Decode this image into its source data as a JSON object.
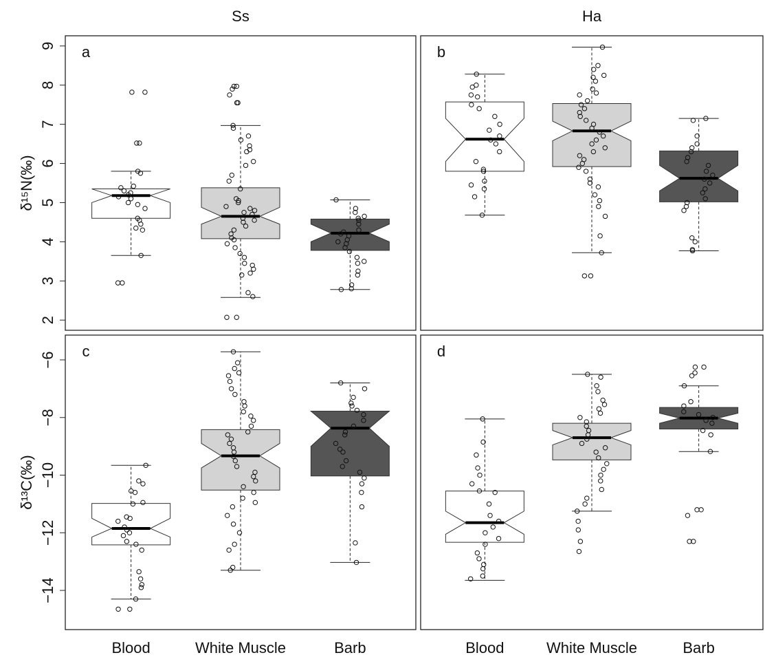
{
  "chart_data": [
    {
      "type": "box",
      "title": "Ss",
      "panel_label": "a",
      "y_label": "δ¹⁵N(‰)",
      "ylim": [
        1.74,
        9.26
      ],
      "yticks": [
        2,
        3,
        4,
        5,
        6,
        7,
        8,
        9
      ],
      "series": [
        {
          "color": "#ffffff",
          "whisker_low": 3.65,
          "q1": 4.6,
          "median": 5.18,
          "q3": 5.35,
          "whisker_high": 5.8,
          "notch": [
            5.0,
            5.35
          ],
          "points": [
            7.82,
            7.82,
            6.52,
            6.52,
            5.8,
            5.75,
            5.42,
            5.38,
            5.3,
            5.25,
            5.2,
            5.15,
            5.1,
            5.0,
            4.95,
            4.85,
            4.6,
            4.45,
            4.35,
            4.3,
            4.55,
            3.65,
            2.95,
            2.95
          ]
        },
        {
          "color": "#d3d3d3",
          "whisker_low": 2.58,
          "q1": 4.08,
          "median": 4.65,
          "q3": 5.38,
          "whisker_high": 6.97,
          "notch": [
            4.45,
            4.88
          ],
          "points": [
            7.97,
            7.97,
            7.9,
            7.75,
            7.55,
            7.55,
            6.97,
            6.9,
            6.7,
            6.6,
            6.45,
            6.35,
            6.3,
            6.05,
            5.95,
            5.7,
            5.55,
            5.35,
            5.1,
            5.05,
            5.0,
            4.9,
            4.85,
            4.8,
            4.75,
            4.7,
            4.6,
            4.55,
            4.5,
            4.4,
            4.3,
            4.2,
            4.1,
            4.05,
            3.95,
            3.85,
            3.7,
            3.6,
            3.45,
            3.4,
            3.3,
            3.2,
            3.15,
            2.7,
            2.6,
            2.07,
            2.07
          ]
        },
        {
          "color": "#555555",
          "whisker_low": 2.78,
          "q1": 3.78,
          "median": 4.22,
          "q3": 4.58,
          "whisker_high": 5.07,
          "notch": [
            4.0,
            4.45
          ],
          "points": [
            5.07,
            4.85,
            4.75,
            4.65,
            4.6,
            4.55,
            4.45,
            4.3,
            4.25,
            4.2,
            4.15,
            4.05,
            4.0,
            3.95,
            3.85,
            3.75,
            3.6,
            3.5,
            3.45,
            3.25,
            3.15,
            2.9,
            2.8,
            2.78
          ]
        }
      ]
    },
    {
      "type": "box",
      "title": "Ha",
      "panel_label": "b",
      "ylim": [
        1.74,
        9.26
      ],
      "series": [
        {
          "color": "#ffffff",
          "whisker_low": 4.68,
          "q1": 5.8,
          "median": 6.62,
          "q3": 7.57,
          "whisker_high": 8.28,
          "notch": [
            6.05,
            7.15
          ],
          "points": [
            8.28,
            8.0,
            7.95,
            7.75,
            7.7,
            7.5,
            7.4,
            7.2,
            7.0,
            6.85,
            6.7,
            6.6,
            6.5,
            6.3,
            6.05,
            5.85,
            5.8,
            5.55,
            5.45,
            5.35,
            5.15,
            4.68
          ]
        },
        {
          "color": "#d3d3d3",
          "whisker_low": 3.72,
          "q1": 5.92,
          "median": 6.83,
          "q3": 7.53,
          "whisker_high": 8.97,
          "notch": [
            6.58,
            7.08
          ],
          "points": [
            8.97,
            8.5,
            8.4,
            8.25,
            8.2,
            8.1,
            7.9,
            7.8,
            7.75,
            7.6,
            7.5,
            7.4,
            7.3,
            7.2,
            7.1,
            7.0,
            6.9,
            6.8,
            6.7,
            6.6,
            6.5,
            6.4,
            6.3,
            6.2,
            6.1,
            6.0,
            5.9,
            5.8,
            5.6,
            5.5,
            5.4,
            5.2,
            5.05,
            4.9,
            4.65,
            4.15,
            3.72,
            3.13,
            3.13
          ]
        },
        {
          "color": "#555555",
          "whisker_low": 3.77,
          "q1": 5.02,
          "median": 5.62,
          "q3": 6.32,
          "whisker_high": 7.15,
          "notch": [
            5.3,
            5.95
          ],
          "points": [
            7.15,
            7.1,
            6.7,
            6.5,
            6.4,
            6.3,
            6.15,
            6.05,
            5.95,
            5.8,
            5.7,
            5.6,
            5.5,
            5.35,
            5.25,
            5.1,
            5.0,
            4.9,
            4.8,
            4.1,
            4.0,
            3.8,
            3.77
          ]
        }
      ]
    },
    {
      "type": "box",
      "panel_label": "c",
      "y_label": "δ¹³C(‰)",
      "ylim": [
        -15.36,
        -5.14
      ],
      "yticks": [
        {
          "value": -14,
          "label": "−14"
        },
        {
          "value": -12,
          "label": "−12"
        },
        {
          "value": -10,
          "label": "−10"
        },
        {
          "value": -8,
          "label": "−8"
        },
        {
          "value": -6,
          "label": "−6"
        }
      ],
      "categories": [
        "Blood",
        "White Muscle",
        "Barb"
      ],
      "series": [
        {
          "color": "#ffffff",
          "whisker_low": -14.3,
          "q1": -12.42,
          "median": -11.85,
          "q3": -10.98,
          "whisker_high": -9.66,
          "notch": [
            -12.15,
            -11.5
          ],
          "points": [
            -9.66,
            -10.2,
            -10.3,
            -10.55,
            -10.6,
            -10.95,
            -11.0,
            -11.45,
            -11.5,
            -11.6,
            -11.8,
            -11.9,
            -12.0,
            -12.1,
            -12.3,
            -12.4,
            -12.6,
            -13.35,
            -13.6,
            -13.8,
            -13.9,
            -14.3,
            -14.65,
            -14.65
          ]
        },
        {
          "color": "#d3d3d3",
          "whisker_low": -13.3,
          "q1": -10.52,
          "median": -9.33,
          "q3": -8.42,
          "whisker_high": -5.72,
          "notch": [
            -9.75,
            -8.9
          ],
          "points": [
            -5.72,
            -6.1,
            -6.3,
            -6.45,
            -6.55,
            -6.75,
            -7.0,
            -7.2,
            -7.45,
            -7.6,
            -7.8,
            -7.95,
            -8.1,
            -8.3,
            -8.5,
            -8.6,
            -8.75,
            -8.9,
            -9.05,
            -9.2,
            -9.35,
            -9.5,
            -9.7,
            -9.9,
            -10.05,
            -10.2,
            -10.4,
            -10.6,
            -10.8,
            -10.95,
            -11.1,
            -11.4,
            -11.7,
            -12.0,
            -12.4,
            -12.6,
            -13.2,
            -13.3
          ]
        },
        {
          "color": "#555555",
          "whisker_low": -13.03,
          "q1": -10.03,
          "median": -8.37,
          "q3": -7.78,
          "whisker_high": -6.8,
          "notch": [
            -9.0,
            -7.78
          ],
          "points": [
            -6.8,
            -7.0,
            -7.3,
            -7.5,
            -7.6,
            -7.75,
            -7.9,
            -8.1,
            -8.3,
            -8.5,
            -8.6,
            -8.9,
            -9.1,
            -9.2,
            -9.5,
            -9.7,
            -9.9,
            -10.1,
            -10.3,
            -10.6,
            -11.1,
            -12.35,
            -13.03
          ]
        }
      ]
    },
    {
      "type": "box",
      "panel_label": "d",
      "ylim": [
        -15.36,
        -5.14
      ],
      "categories": [
        "Blood",
        "White Muscle",
        "Barb"
      ],
      "series": [
        {
          "color": "#ffffff",
          "whisker_low": -13.65,
          "q1": -12.33,
          "median": -11.65,
          "q3": -10.55,
          "whisker_high": -8.05,
          "notch": [
            -12.05,
            -11.25
          ],
          "points": [
            -8.05,
            -8.85,
            -9.3,
            -9.75,
            -10.0,
            -10.3,
            -10.55,
            -10.6,
            -11.0,
            -11.4,
            -11.6,
            -11.8,
            -12.0,
            -12.2,
            -12.4,
            -12.7,
            -12.9,
            -13.1,
            -13.25,
            -13.5,
            -13.6
          ]
        },
        {
          "color": "#d3d3d3",
          "whisker_low": -11.25,
          "q1": -9.47,
          "median": -8.7,
          "q3": -8.2,
          "whisker_high": -6.5,
          "notch": [
            -8.95,
            -8.45
          ],
          "points": [
            -6.5,
            -6.6,
            -6.9,
            -7.1,
            -7.4,
            -7.55,
            -7.7,
            -7.85,
            -8.0,
            -8.15,
            -8.3,
            -8.45,
            -8.6,
            -8.75,
            -8.9,
            -9.05,
            -9.2,
            -9.4,
            -9.6,
            -9.8,
            -10.0,
            -10.2,
            -10.5,
            -10.8,
            -11.0,
            -11.25,
            -11.6,
            -11.9,
            -12.3,
            -12.65
          ]
        },
        {
          "color": "#555555",
          "whisker_low": -9.18,
          "q1": -8.4,
          "median": -8.02,
          "q3": -7.65,
          "whisker_high": -6.9,
          "notch": [
            -8.2,
            -7.85
          ],
          "points": [
            -6.25,
            -6.25,
            -6.45,
            -6.55,
            -6.9,
            -7.45,
            -7.6,
            -7.8,
            -7.9,
            -8.0,
            -8.1,
            -8.2,
            -8.45,
            -8.6,
            -9.18,
            -11.2,
            -11.2,
            -11.4,
            -12.3,
            -12.3
          ]
        }
      ]
    }
  ]
}
